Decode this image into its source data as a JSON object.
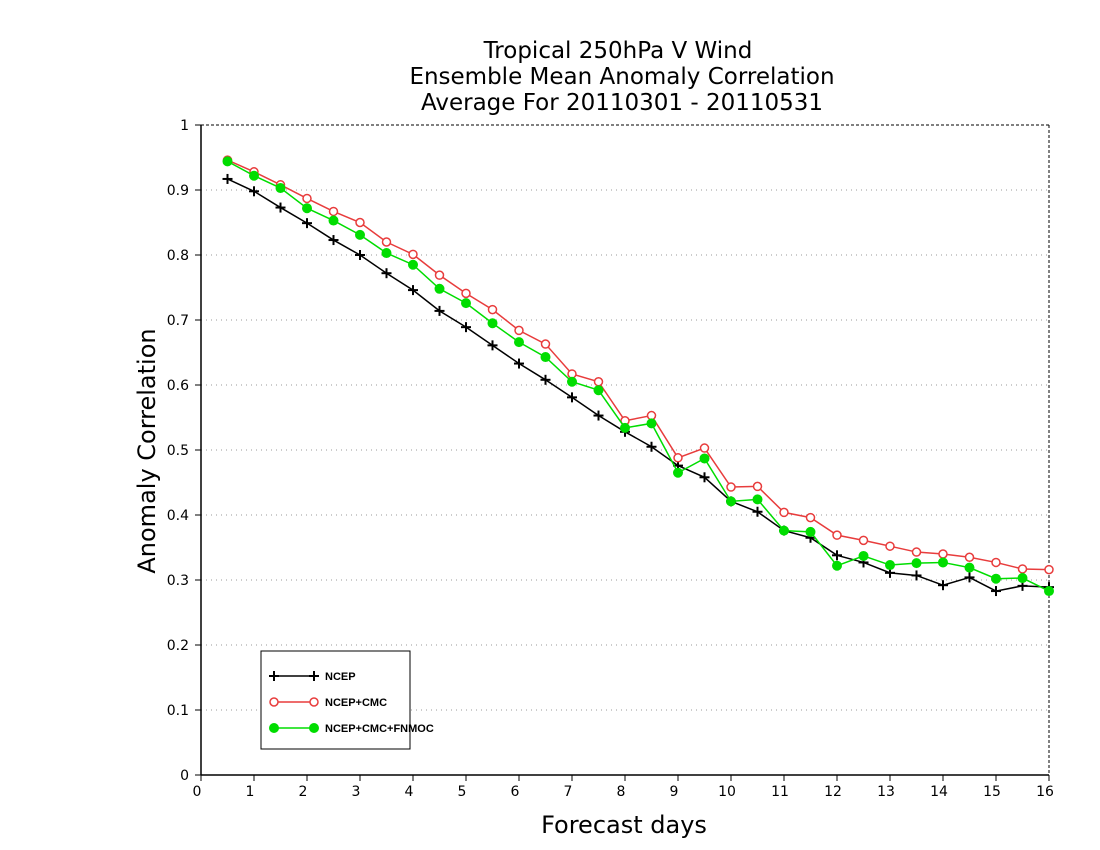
{
  "chart_data": {
    "type": "line",
    "title": [
      "Tropical 250hPa V Wind",
      "Ensemble Mean Anomaly Correlation",
      "Average For 20110301 - 20110531"
    ],
    "xlabel": "Forecast days",
    "ylabel": "Anomaly Correlation",
    "xlim": [
      0,
      16
    ],
    "ylim": [
      0,
      1
    ],
    "xticks": [
      "0",
      "1",
      "2",
      "3",
      "4",
      "5",
      "6",
      "7",
      "8",
      "9",
      "10",
      "11",
      "12",
      "13",
      "14",
      "15",
      "16"
    ],
    "yticks": [
      "0",
      "0.1",
      "0.2",
      "0.3",
      "0.4",
      "0.5",
      "0.6",
      "0.7",
      "0.8",
      "0.9",
      "1"
    ],
    "grid": "horizontal dotted",
    "legend_position": "bottom-left",
    "x": [
      0.5,
      1,
      1.5,
      2,
      2.5,
      3,
      3.5,
      4,
      4.5,
      5,
      5.5,
      6,
      6.5,
      7,
      7.5,
      8,
      8.5,
      9,
      9.5,
      10,
      10.5,
      11,
      11.5,
      12,
      12.5,
      13,
      13.5,
      14,
      14.5,
      15,
      15.5,
      16
    ],
    "series": [
      {
        "name": "NCEP",
        "color": "#000000",
        "marker": "plus",
        "values": [
          0.917,
          0.898,
          0.873,
          0.849,
          0.823,
          0.8,
          0.772,
          0.746,
          0.714,
          0.689,
          0.661,
          0.633,
          0.608,
          0.581,
          0.553,
          0.528,
          0.505,
          0.476,
          0.458,
          0.421,
          0.405,
          0.376,
          0.365,
          0.338,
          0.327,
          0.311,
          0.307,
          0.292,
          0.304,
          0.283,
          0.291,
          0.289
        ]
      },
      {
        "name": "NCEP+CMC",
        "color": "#e83c3c",
        "marker": "open-circle",
        "values": [
          0.946,
          0.928,
          0.908,
          0.887,
          0.867,
          0.85,
          0.82,
          0.801,
          0.769,
          0.741,
          0.716,
          0.684,
          0.663,
          0.617,
          0.605,
          0.545,
          0.553,
          0.488,
          0.503,
          0.443,
          0.444,
          0.404,
          0.396,
          0.369,
          0.361,
          0.352,
          0.343,
          0.34,
          0.335,
          0.327,
          0.317,
          0.316
        ]
      },
      {
        "name": "NCEP+CMC+FNMOC",
        "color": "#00dd00",
        "marker": "filled-circle",
        "values": [
          0.944,
          0.922,
          0.903,
          0.872,
          0.853,
          0.831,
          0.803,
          0.785,
          0.748,
          0.726,
          0.695,
          0.666,
          0.643,
          0.605,
          0.592,
          0.534,
          0.541,
          0.465,
          0.487,
          0.421,
          0.424,
          0.376,
          0.374,
          0.322,
          0.337,
          0.323,
          0.326,
          0.327,
          0.319,
          0.302,
          0.303,
          0.283
        ]
      }
    ]
  }
}
